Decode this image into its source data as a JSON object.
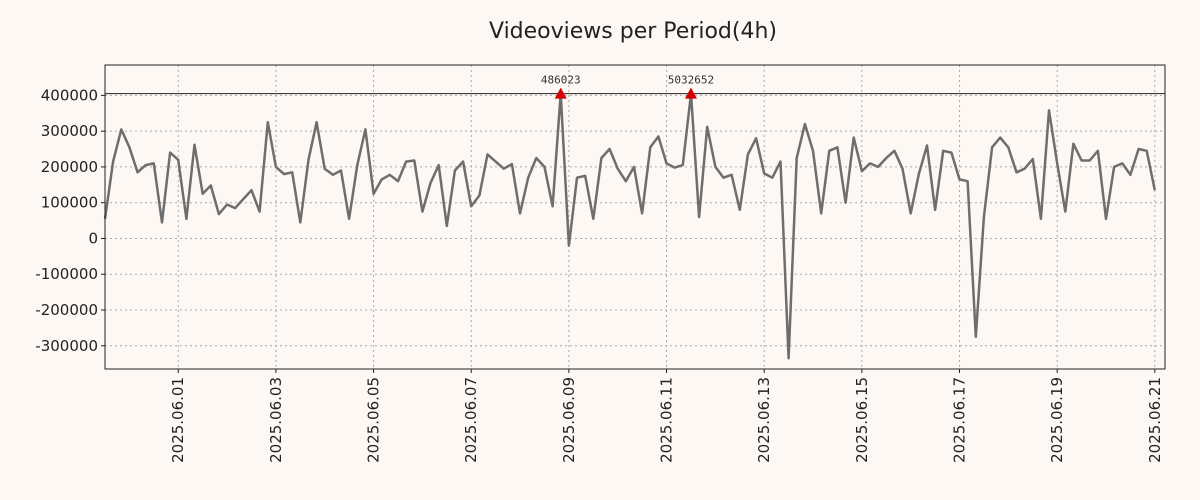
{
  "chart_data": {
    "type": "line",
    "title": "Videoviews per Period(4h)",
    "xlabel": "",
    "ylabel": "",
    "ylim": [
      -365000,
      485000
    ],
    "xlim": [
      "2025-05-30T12:00",
      "2025-06-21T05:00"
    ],
    "y_ticks": [
      400000,
      300000,
      200000,
      100000,
      0,
      -100000,
      -200000,
      -300000
    ],
    "y_tick_labels": [
      "400000",
      "300000",
      "200000",
      "100000",
      "0",
      "-100000",
      "-200000",
      "-300000"
    ],
    "x_ticks": [
      "2025-06-01",
      "2025-06-03",
      "2025-06-05",
      "2025-06-07",
      "2025-06-09",
      "2025-06-11",
      "2025-06-13",
      "2025-06-15",
      "2025-06-17",
      "2025-06-19",
      "2025-06-21"
    ],
    "x_tick_labels": [
      "2025.06.01",
      "2025.06.03",
      "2025.06.05",
      "2025.06.07",
      "2025.06.09",
      "2025.06.11",
      "2025.06.13",
      "2025.06.15",
      "2025.06.17",
      "2025.06.19",
      "2025.06.21"
    ],
    "grid": true,
    "reference_line": 405000,
    "line_color": "#6e6e6e",
    "marker_color": "#d40000",
    "series": [
      {
        "points": [
          [
            "2025-05-30T12:00",
            55000
          ],
          [
            "2025-05-30T16:00",
            215000
          ],
          [
            "2025-05-30T20:00",
            305000
          ],
          [
            "2025-05-31T00:00",
            255000
          ],
          [
            "2025-05-31T04:00",
            185000
          ],
          [
            "2025-05-31T08:00",
            205000
          ],
          [
            "2025-05-31T12:00",
            210000
          ],
          [
            "2025-05-31T16:00",
            45000
          ],
          [
            "2025-05-31T20:00",
            240000
          ],
          [
            "2025-06-01T00:00",
            220000
          ],
          [
            "2025-06-01T04:00",
            55000
          ],
          [
            "2025-06-01T08:00",
            262000
          ],
          [
            "2025-06-01T12:00",
            125000
          ],
          [
            "2025-06-01T16:00",
            148000
          ],
          [
            "2025-06-01T20:00",
            68000
          ],
          [
            "2025-06-02T00:00",
            95000
          ],
          [
            "2025-06-02T04:00",
            85000
          ],
          [
            "2025-06-02T08:00",
            110000
          ],
          [
            "2025-06-02T12:00",
            135000
          ],
          [
            "2025-06-02T16:00",
            75000
          ],
          [
            "2025-06-02T20:00",
            325000
          ],
          [
            "2025-06-03T00:00",
            200000
          ],
          [
            "2025-06-03T04:00",
            180000
          ],
          [
            "2025-06-03T08:00",
            185000
          ],
          [
            "2025-06-03T12:00",
            45000
          ],
          [
            "2025-06-03T16:00",
            220000
          ],
          [
            "2025-06-03T20:00",
            325000
          ],
          [
            "2025-06-04T00:00",
            195000
          ],
          [
            "2025-06-04T04:00",
            178000
          ],
          [
            "2025-06-04T08:00",
            190000
          ],
          [
            "2025-06-04T12:00",
            55000
          ],
          [
            "2025-06-04T16:00",
            205000
          ],
          [
            "2025-06-04T20:00",
            305000
          ],
          [
            "2025-06-05T00:00",
            125000
          ],
          [
            "2025-06-05T04:00",
            165000
          ],
          [
            "2025-06-05T08:00",
            178000
          ],
          [
            "2025-06-05T12:00",
            160000
          ],
          [
            "2025-06-05T16:00",
            215000
          ],
          [
            "2025-06-05T20:00",
            218000
          ],
          [
            "2025-06-06T00:00",
            75000
          ],
          [
            "2025-06-06T04:00",
            155000
          ],
          [
            "2025-06-06T08:00",
            205000
          ],
          [
            "2025-06-06T12:00",
            35000
          ],
          [
            "2025-06-06T16:00",
            190000
          ],
          [
            "2025-06-06T20:00",
            215000
          ],
          [
            "2025-06-07T00:00",
            90000
          ],
          [
            "2025-06-07T04:00",
            120000
          ],
          [
            "2025-06-07T08:00",
            235000
          ],
          [
            "2025-06-07T12:00",
            215000
          ],
          [
            "2025-06-07T16:00",
            195000
          ],
          [
            "2025-06-07T20:00",
            208000
          ],
          [
            "2025-06-08T00:00",
            70000
          ],
          [
            "2025-06-08T04:00",
            170000
          ],
          [
            "2025-06-08T08:00",
            225000
          ],
          [
            "2025-06-08T12:00",
            200000
          ],
          [
            "2025-06-08T16:00",
            90000
          ],
          [
            "2025-06-08T20:00",
            405000
          ],
          [
            "2025-06-09T00:00",
            -20000
          ],
          [
            "2025-06-09T04:00",
            170000
          ],
          [
            "2025-06-09T08:00",
            175000
          ],
          [
            "2025-06-09T12:00",
            55000
          ],
          [
            "2025-06-09T16:00",
            225000
          ],
          [
            "2025-06-09T20:00",
            250000
          ],
          [
            "2025-06-10T00:00",
            195000
          ],
          [
            "2025-06-10T04:00",
            160000
          ],
          [
            "2025-06-10T08:00",
            200000
          ],
          [
            "2025-06-10T12:00",
            70000
          ],
          [
            "2025-06-10T16:00",
            255000
          ],
          [
            "2025-06-10T20:00",
            285000
          ],
          [
            "2025-06-11T00:00",
            210000
          ],
          [
            "2025-06-11T04:00",
            198000
          ],
          [
            "2025-06-11T08:00",
            205000
          ],
          [
            "2025-06-11T12:00",
            405000
          ],
          [
            "2025-06-11T16:00",
            60000
          ],
          [
            "2025-06-11T20:00",
            312000
          ],
          [
            "2025-06-12T00:00",
            200000
          ],
          [
            "2025-06-12T04:00",
            170000
          ],
          [
            "2025-06-12T08:00",
            178000
          ],
          [
            "2025-06-12T12:00",
            80000
          ],
          [
            "2025-06-12T16:00",
            235000
          ],
          [
            "2025-06-12T20:00",
            280000
          ],
          [
            "2025-06-13T00:00",
            182000
          ],
          [
            "2025-06-13T04:00",
            170000
          ],
          [
            "2025-06-13T08:00",
            215000
          ],
          [
            "2025-06-13T12:00",
            -335000
          ],
          [
            "2025-06-13T16:00",
            225000
          ],
          [
            "2025-06-13T20:00",
            320000
          ],
          [
            "2025-06-14T00:00",
            245000
          ],
          [
            "2025-06-14T04:00",
            70000
          ],
          [
            "2025-06-14T08:00",
            245000
          ],
          [
            "2025-06-14T12:00",
            255000
          ],
          [
            "2025-06-14T16:00",
            100000
          ],
          [
            "2025-06-14T20:00",
            282000
          ],
          [
            "2025-06-15T00:00",
            188000
          ],
          [
            "2025-06-15T04:00",
            210000
          ],
          [
            "2025-06-15T08:00",
            200000
          ],
          [
            "2025-06-15T12:00",
            225000
          ],
          [
            "2025-06-15T16:00",
            245000
          ],
          [
            "2025-06-15T20:00",
            195000
          ],
          [
            "2025-06-16T00:00",
            70000
          ],
          [
            "2025-06-16T04:00",
            180000
          ],
          [
            "2025-06-16T08:00",
            260000
          ],
          [
            "2025-06-16T12:00",
            80000
          ],
          [
            "2025-06-16T16:00",
            245000
          ],
          [
            "2025-06-16T20:00",
            240000
          ],
          [
            "2025-06-17T00:00",
            165000
          ],
          [
            "2025-06-17T04:00",
            160000
          ],
          [
            "2025-06-17T08:00",
            -275000
          ],
          [
            "2025-06-17T12:00",
            60000
          ],
          [
            "2025-06-17T16:00",
            255000
          ],
          [
            "2025-06-17T20:00",
            282000
          ],
          [
            "2025-06-18T00:00",
            255000
          ],
          [
            "2025-06-18T04:00",
            185000
          ],
          [
            "2025-06-18T08:00",
            195000
          ],
          [
            "2025-06-18T12:00",
            222000
          ],
          [
            "2025-06-18T16:00",
            55000
          ],
          [
            "2025-06-18T20:00",
            358000
          ],
          [
            "2025-06-19T00:00",
            210000
          ],
          [
            "2025-06-19T04:00",
            75000
          ],
          [
            "2025-06-19T08:00",
            265000
          ],
          [
            "2025-06-19T12:00",
            218000
          ],
          [
            "2025-06-19T16:00",
            218000
          ],
          [
            "2025-06-19T20:00",
            245000
          ],
          [
            "2025-06-20T00:00",
            55000
          ],
          [
            "2025-06-20T04:00",
            200000
          ],
          [
            "2025-06-20T08:00",
            210000
          ],
          [
            "2025-06-20T12:00",
            178000
          ],
          [
            "2025-06-20T16:00",
            250000
          ],
          [
            "2025-06-20T20:00",
            245000
          ],
          [
            "2025-06-21T00:00",
            135000
          ]
        ]
      }
    ],
    "annotations": [
      {
        "x": "2025-06-08T20:00",
        "y": 405000,
        "label": "486023",
        "marker": "triangle-up"
      },
      {
        "x": "2025-06-11T12:00",
        "y": 405000,
        "label": "5032652",
        "marker": "triangle-up"
      }
    ]
  }
}
